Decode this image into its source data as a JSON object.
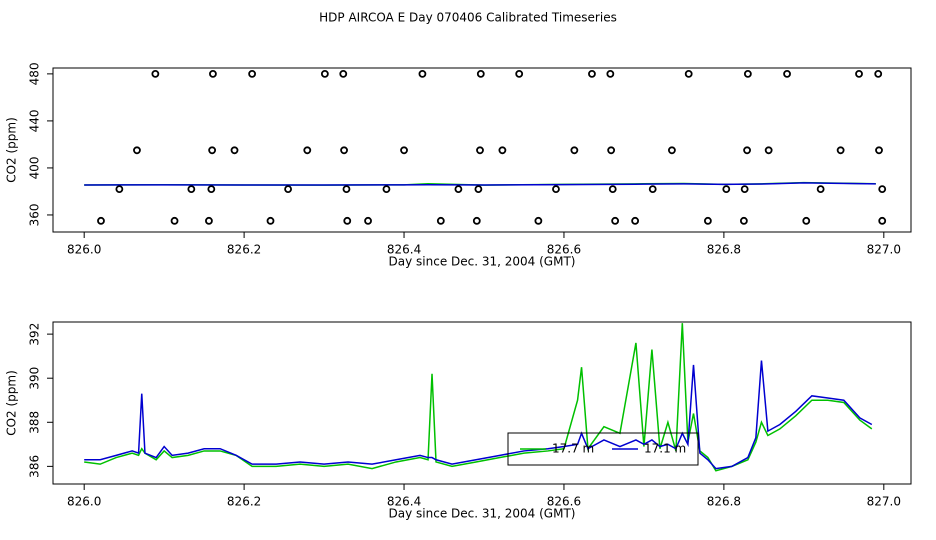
{
  "chart_data": [
    {
      "type": "line",
      "title": "HDP AIRCOA E  Day 070406  Calibrated Timeseries",
      "x_label": "Day since Dec. 31, 2004 (GMT)",
      "y_label": "CO2 (ppm)",
      "xlim": [
        825.961,
        827.034
      ],
      "ylim": [
        345.5,
        485
      ],
      "xticks": [
        {
          "value": 826.0,
          "label": "826.0"
        },
        {
          "value": 826.2,
          "label": "826.2"
        },
        {
          "value": 826.4,
          "label": "826.4"
        },
        {
          "value": 826.6,
          "label": "826.6"
        },
        {
          "value": 826.8,
          "label": "826.8"
        },
        {
          "value": 827.0,
          "label": "827.0"
        }
      ],
      "yticks": [
        360,
        400,
        440,
        480
      ],
      "x": [
        826.0,
        826.1,
        826.2,
        826.3,
        826.4,
        826.43,
        826.5,
        826.6,
        826.7,
        826.75,
        826.8,
        826.85,
        826.9,
        826.99
      ],
      "series": [
        {
          "color": "#00c000",
          "values": [
            385.5,
            385.7,
            385.5,
            385.4,
            385.6,
            386.5,
            385.4,
            386.0,
            386.5,
            386.8,
            386.0,
            386.5,
            387.5,
            386.5
          ]
        },
        {
          "color": "#0000d0",
          "values": [
            385.5,
            385.6,
            385.5,
            385.5,
            385.6,
            385.7,
            385.5,
            385.8,
            386.2,
            386.4,
            386.0,
            386.3,
            387.3,
            386.4
          ]
        }
      ],
      "points": {
        "color": "#000000",
        "x": [
          826.089,
          826.161,
          826.21,
          826.301,
          826.324,
          826.423,
          826.496,
          826.544,
          826.635,
          826.658,
          826.756,
          826.83,
          826.879,
          826.969,
          826.993,
          826.066,
          826.16,
          826.188,
          826.279,
          826.325,
          826.4,
          826.495,
          826.523,
          826.613,
          826.659,
          826.735,
          826.829,
          826.856,
          826.946,
          826.994,
          826.044,
          826.134,
          826.159,
          826.255,
          826.328,
          826.378,
          826.468,
          826.493,
          826.59,
          826.661,
          826.711,
          826.803,
          826.826,
          826.921,
          826.998,
          826.021,
          826.113,
          826.156,
          826.233,
          826.329,
          826.355,
          826.446,
          826.491,
          826.568,
          826.664,
          826.689,
          826.78,
          826.825,
          826.903,
          826.998
        ],
        "y": [
          480,
          480,
          480,
          480,
          480,
          480,
          480,
          480,
          480,
          480,
          480,
          480,
          480,
          480,
          480,
          415,
          415,
          415,
          415,
          415,
          415,
          415,
          415,
          415,
          415,
          415,
          415,
          415,
          415,
          415,
          382,
          382,
          382,
          382,
          382,
          382,
          382,
          382,
          382,
          382,
          382,
          382,
          382,
          382,
          382,
          355,
          355,
          355,
          355,
          355,
          355,
          355,
          355,
          355,
          355,
          355,
          355,
          355,
          355,
          355
        ]
      }
    },
    {
      "type": "line",
      "x_label": "Day since Dec. 31, 2004 (GMT)",
      "y_label": "CO2 (ppm)",
      "xlim": [
        825.961,
        827.034
      ],
      "ylim": [
        385.2,
        392.55
      ],
      "xticks": [
        {
          "value": 826.0,
          "label": "826.0"
        },
        {
          "value": 826.2,
          "label": "826.2"
        },
        {
          "value": 826.4,
          "label": "826.4"
        },
        {
          "value": 826.6,
          "label": "826.6"
        },
        {
          "value": 826.8,
          "label": "826.8"
        },
        {
          "value": 827.0,
          "label": "827.0"
        }
      ],
      "yticks": [
        386,
        388,
        390,
        392
      ],
      "legend": "center",
      "x": [
        826.0,
        826.02,
        826.04,
        826.06,
        826.068,
        826.072,
        826.076,
        826.09,
        826.1,
        826.11,
        826.13,
        826.15,
        826.17,
        826.19,
        826.21,
        826.24,
        826.27,
        826.3,
        826.33,
        826.36,
        826.39,
        826.42,
        826.43,
        826.435,
        826.44,
        826.46,
        826.49,
        826.52,
        826.55,
        826.58,
        826.6,
        826.617,
        826.622,
        826.63,
        826.65,
        826.67,
        826.69,
        826.7,
        826.71,
        826.72,
        826.73,
        826.74,
        826.748,
        826.755,
        826.762,
        826.77,
        826.78,
        826.79,
        826.81,
        826.83,
        826.84,
        826.847,
        826.855,
        826.87,
        826.89,
        826.91,
        826.93,
        826.95,
        826.97,
        826.985
      ],
      "series": [
        {
          "name": "17.7 m",
          "color": "#00c000",
          "values": [
            386.2,
            386.1,
            386.4,
            386.6,
            386.5,
            386.8,
            386.6,
            386.3,
            386.7,
            386.4,
            386.5,
            386.7,
            386.7,
            386.5,
            386.0,
            386.0,
            386.1,
            386.0,
            386.1,
            385.9,
            386.2,
            386.4,
            386.3,
            390.2,
            386.2,
            386.0,
            386.2,
            386.4,
            386.6,
            386.7,
            386.8,
            389.0,
            390.5,
            386.8,
            387.8,
            387.5,
            391.6,
            386.9,
            391.3,
            386.8,
            388.0,
            386.7,
            392.5,
            387.1,
            388.4,
            386.7,
            386.4,
            385.8,
            386.0,
            386.3,
            387.1,
            388.0,
            387.4,
            387.7,
            388.3,
            389.0,
            389.0,
            388.9,
            388.1,
            387.7
          ]
        },
        {
          "name": "17.1 m",
          "color": "#0000d0",
          "values": [
            386.3,
            386.3,
            386.5,
            386.7,
            386.6,
            389.3,
            386.6,
            386.4,
            386.9,
            386.5,
            386.6,
            386.8,
            386.8,
            386.5,
            386.1,
            386.1,
            386.2,
            386.1,
            386.2,
            386.1,
            386.3,
            386.5,
            386.4,
            386.4,
            386.3,
            386.1,
            386.3,
            386.5,
            386.7,
            386.8,
            386.9,
            387.0,
            387.5,
            386.8,
            387.2,
            386.9,
            387.2,
            387.0,
            387.2,
            386.9,
            387.0,
            386.8,
            387.5,
            387.0,
            390.6,
            386.6,
            386.3,
            385.9,
            386.0,
            386.4,
            387.3,
            390.8,
            387.6,
            387.9,
            388.5,
            389.2,
            389.1,
            389.0,
            388.2,
            387.9
          ]
        }
      ]
    }
  ]
}
